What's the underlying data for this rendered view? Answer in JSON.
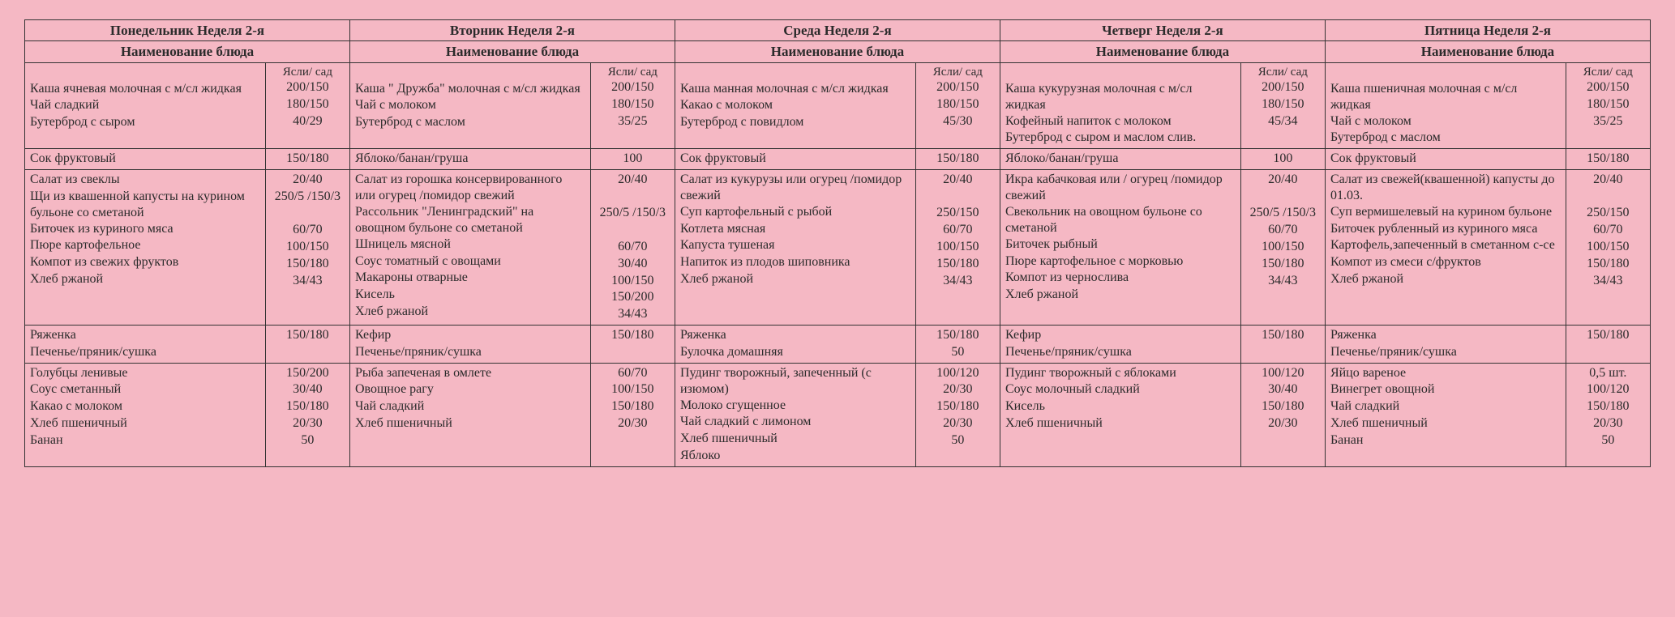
{
  "portionHeader": "Ясли/ сад",
  "dishHeader": "Наименование блюда",
  "days": [
    {
      "title": "Понедельник Неделя 2-я",
      "meals": [
        [
          {
            "name": "Каша ячневая молочная с м/сл жидкая",
            "portion": "200/150"
          },
          {
            "name": "Чай сладкий",
            "portion": "180/150"
          },
          {
            "name": "Бутерброд с сыром",
            "portion": "40/29"
          }
        ],
        [
          {
            "name": "Сок фруктовый",
            "portion": "150/180"
          }
        ],
        [
          {
            "name": "Салат из свеклы",
            "portion": "20/40"
          },
          {
            "name": "Щи из квашенной капусты на курином бульоне со сметаной",
            "portion": "250/5 /150/3"
          },
          {
            "name": "Биточек из куриного мяса",
            "portion": "60/70"
          },
          {
            "name": "Пюре картофельное",
            "portion": "100/150"
          },
          {
            "name": "Компот из свежих фруктов",
            "portion": "150/180"
          },
          {
            "name": "Хлеб ржаной",
            "portion": "34/43"
          }
        ],
        [
          {
            "name": "Ряженка",
            "portion": "150/180"
          },
          {
            "name": "Печенье/пряник/сушка",
            "portion": ""
          }
        ],
        [
          {
            "name": "Голубцы ленивые",
            "portion": "150/200"
          },
          {
            "name": "Соус сметанный",
            "portion": "30/40"
          },
          {
            "name": "Какао с молоком",
            "portion": "150/180"
          },
          {
            "name": "Хлеб пшеничный",
            "portion": "20/30"
          },
          {
            "name": "Банан",
            "portion": "50"
          }
        ]
      ]
    },
    {
      "title": "Вторник Неделя 2-я",
      "meals": [
        [
          {
            "name": "Каша \" Дружба\" молочная с м/сл жидкая",
            "portion": "200/150"
          },
          {
            "name": "Чай с молоком",
            "portion": "180/150"
          },
          {
            "name": "Бутерброд с маслом",
            "portion": "35/25"
          }
        ],
        [
          {
            "name": "Яблоко/банан/груша",
            "portion": "100"
          }
        ],
        [
          {
            "name": "Салат из горошка консервированного или огурец /помидор свежий",
            "portion": "20/40"
          },
          {
            "name": "Рассольник \"Ленинградский\" на овощном бульоне со сметаной",
            "portion": "250/5 /150/3"
          },
          {
            "name": "Шницель мясной",
            "portion": "60/70"
          },
          {
            "name": "Соус томатный с овощами",
            "portion": "30/40"
          },
          {
            "name": "Макароны отварные",
            "portion": "100/150"
          },
          {
            "name": "Кисель",
            "portion": "150/200"
          },
          {
            "name": "Хлеб ржаной",
            "portion": "34/43"
          }
        ],
        [
          {
            "name": "Кефир",
            "portion": "150/180"
          },
          {
            "name": "Печенье/пряник/сушка",
            "portion": ""
          }
        ],
        [
          {
            "name": "Рыба запеченая в омлете",
            "portion": "60/70"
          },
          {
            "name": "Овощное рагу",
            "portion": "100/150"
          },
          {
            "name": "Чай сладкий",
            "portion": "150/180"
          },
          {
            "name": "Хлеб пшеничный",
            "portion": "20/30"
          }
        ]
      ]
    },
    {
      "title": "Среда Неделя 2-я",
      "meals": [
        [
          {
            "name": "Каша манная молочная с м/сл жидкая",
            "portion": "200/150"
          },
          {
            "name": "Какао с молоком",
            "portion": "180/150"
          },
          {
            "name": "Бутерброд с повидлом",
            "portion": "45/30"
          }
        ],
        [
          {
            "name": "Сок фруктовый",
            "portion": "150/180"
          }
        ],
        [
          {
            "name": "Салат из кукурузы или огурец /помидор свежий",
            "portion": "20/40"
          },
          {
            "name": "Суп картофельный с рыбой",
            "portion": "250/150"
          },
          {
            "name": "Котлета мясная",
            "portion": "60/70"
          },
          {
            "name": "Капуста тушеная",
            "portion": "100/150"
          },
          {
            "name": "Напиток из плодов шиповника",
            "portion": "150/180"
          },
          {
            "name": "Хлеб ржаной",
            "portion": "34/43"
          }
        ],
        [
          {
            "name": "Ряженка",
            "portion": "150/180"
          },
          {
            "name": "Булочка домашняя",
            "portion": "50"
          }
        ],
        [
          {
            "name": "Пудинг творожный, запеченный (с изюмом)",
            "portion": "100/120"
          },
          {
            "name": "Молоко сгущенное",
            "portion": "20/30"
          },
          {
            "name": "Чай сладкий с лимоном",
            "portion": "150/180"
          },
          {
            "name": "Хлеб пшеничный",
            "portion": "20/30"
          },
          {
            "name": "Яблоко",
            "portion": "50"
          }
        ]
      ]
    },
    {
      "title": "Четверг Неделя 2-я",
      "meals": [
        [
          {
            "name": "Каша кукурузная молочная с м/сл жидкая",
            "portion": "200/150"
          },
          {
            "name": "Кофейный напиток с молоком",
            "portion": "180/150"
          },
          {
            "name": "Бутерброд с сыром и маслом слив.",
            "portion": "45/34"
          }
        ],
        [
          {
            "name": "Яблоко/банан/груша",
            "portion": "100"
          }
        ],
        [
          {
            "name": "Икра кабачковая   или / огурец /помидор свежий",
            "portion": "20/40"
          },
          {
            "name": "Свекольник на овощном бульоне со сметаной",
            "portion": "250/5 /150/3"
          },
          {
            "name": "Биточек рыбный",
            "portion": "60/70"
          },
          {
            "name": "Пюре картофельное с морковью",
            "portion": "100/150"
          },
          {
            "name": "Компот из чернослива",
            "portion": "150/180"
          },
          {
            "name": "Хлеб ржаной",
            "portion": "34/43"
          }
        ],
        [
          {
            "name": "Кефир",
            "portion": "150/180"
          },
          {
            "name": "Печенье/пряник/сушка",
            "portion": ""
          }
        ],
        [
          {
            "name": "Пудинг творожный с яблоками",
            "portion": "100/120"
          },
          {
            "name": "Соус молочный сладкий",
            "portion": "30/40"
          },
          {
            "name": "Кисель",
            "portion": "150/180"
          },
          {
            "name": "Хлеб пшеничный",
            "portion": "20/30"
          }
        ]
      ]
    },
    {
      "title": "Пятница Неделя 2-я",
      "meals": [
        [
          {
            "name": "Каша пшеничная молочная с м/сл жидкая",
            "portion": "200/150"
          },
          {
            "name": "Чай с молоком",
            "portion": "180/150"
          },
          {
            "name": "Бутерброд с маслом",
            "portion": "35/25"
          }
        ],
        [
          {
            "name": "Сок фруктовый",
            "portion": "150/180"
          }
        ],
        [
          {
            "name": "Салат из свежей(квашенной) капусты до 01.03.",
            "portion": "20/40"
          },
          {
            "name": "Суп вермишелевый на курином бульоне",
            "portion": "250/150"
          },
          {
            "name": "Биточек рубленный из куриного мяса",
            "portion": "60/70"
          },
          {
            "name": "Картофель,запеченный в сметанном с-се",
            "portion": "100/150"
          },
          {
            "name": "Компот из смеси с/фруктов",
            "portion": "150/180"
          },
          {
            "name": "Хлеб ржаной",
            "portion": "34/43"
          }
        ],
        [
          {
            "name": "Ряженка",
            "portion": "150/180"
          },
          {
            "name": "Печенье/пряник/сушка",
            "portion": ""
          }
        ],
        [
          {
            "name": "Яйцо вареное",
            "portion": "0,5 шт."
          },
          {
            "name": "Винегрет овощной",
            "portion": "100/120"
          },
          {
            "name": "Чай сладкий",
            "portion": "150/180"
          },
          {
            "name": "Хлеб пшеничный",
            "portion": "20/30"
          },
          {
            "name": "Банан",
            "portion": "50"
          }
        ]
      ]
    }
  ]
}
